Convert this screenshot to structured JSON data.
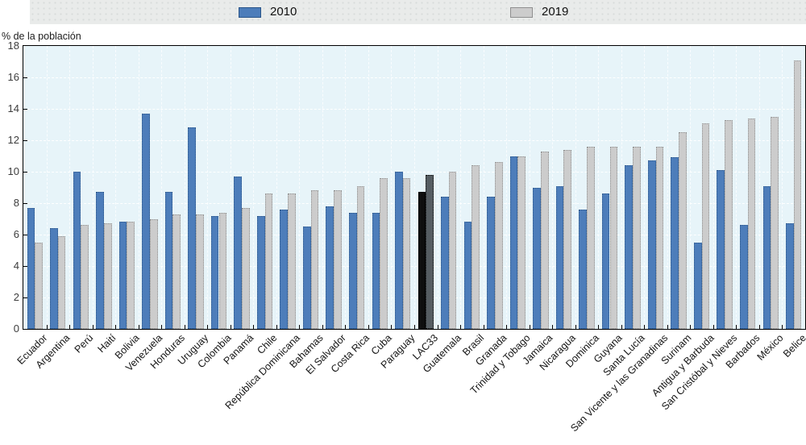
{
  "legend": {
    "items": [
      {
        "label": "2010",
        "color": "#4d7dba",
        "border": "#2a5589"
      },
      {
        "label": "2019",
        "color": "#cccccc",
        "border": "#8f8f8f"
      }
    ]
  },
  "chart_data": {
    "type": "bar",
    "title": "",
    "ylabel": "% de la población",
    "xlabel": "",
    "ylim": [
      0,
      18
    ],
    "yticks": [
      0,
      2,
      4,
      6,
      8,
      10,
      12,
      14,
      16,
      18
    ],
    "grid": "white dashed, horizontal and vertical",
    "legend_position": "top",
    "plot_background": "#e7f4f9",
    "categories": [
      "Ecuador",
      "Argentina",
      "Perú",
      "Haití",
      "Bolivia",
      "Venezuela",
      "Honduras",
      "Uruguay",
      "Colombia",
      "Panamá",
      "Chile",
      "República Dominicana",
      "Bahamas",
      "El Salvador",
      "Costa Rica",
      "Cuba",
      "Paraguay",
      "LAC33",
      "Guatemala",
      "Brasil",
      "Granada",
      "Trinidad y Tobago",
      "Jamaica",
      "Nicaragua",
      "Dominica",
      "Guyana",
      "Santa Lucía",
      "San Vicente y las Granadinas",
      "Surinam",
      "Antigua y Barbuda",
      "San Cristóbal y Nieves",
      "Barbados",
      "México",
      "Belice"
    ],
    "series": [
      {
        "name": "2010",
        "color": "#4d7dba",
        "border": "#2a5589",
        "values": [
          7.7,
          6.4,
          10.0,
          8.7,
          6.8,
          13.7,
          8.7,
          12.8,
          7.2,
          9.7,
          7.2,
          7.6,
          6.5,
          7.8,
          7.4,
          7.4,
          10.0,
          8.7,
          8.4,
          6.8,
          8.4,
          11.0,
          9.0,
          9.1,
          7.6,
          8.6,
          10.4,
          10.7,
          10.9,
          5.5,
          10.1,
          6.6,
          9.1,
          6.7
        ]
      },
      {
        "name": "2019",
        "color": "#cccccc",
        "border": "#8f8f8f",
        "values": [
          5.5,
          5.9,
          6.6,
          6.7,
          6.8,
          7.0,
          7.3,
          7.3,
          7.4,
          7.7,
          8.6,
          8.6,
          8.8,
          8.8,
          9.1,
          9.6,
          9.6,
          9.8,
          10.0,
          10.4,
          10.6,
          11.0,
          11.3,
          11.4,
          11.6,
          11.6,
          11.6,
          11.6,
          12.5,
          13.1,
          13.3,
          13.4,
          13.5,
          17.1
        ]
      }
    ],
    "highlight": {
      "category": "LAC33",
      "color_2010": "#0e0e0e",
      "border_2010": "#000000",
      "color_2019": "#565d62",
      "border_2019": "#000000"
    }
  }
}
